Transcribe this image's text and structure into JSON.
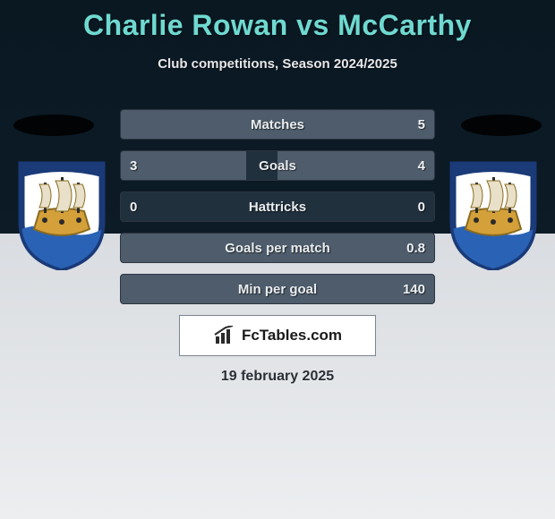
{
  "title": "Charlie Rowan vs McCarthy",
  "subtitle": "Club competitions, Season 2024/2025",
  "date": "19 february 2025",
  "brand": "FcTables.com",
  "colors": {
    "title": "#6fd9d0",
    "bar_fill": "#4e5c6b",
    "bar_track": "#20303d",
    "bar_border": "#2d3540",
    "text_light": "#e9edef"
  },
  "crest": {
    "shield_border": "#1a3a78",
    "shield_fill": "#ffffff",
    "ship_hull": "#d4a03a",
    "mast": "#2a2a2a",
    "sail": "#e8e0c8",
    "wave": "#2a62b5",
    "banner": "#1a3a78"
  },
  "stats": [
    {
      "label": "Matches",
      "left_val": "",
      "right_val": "5",
      "left_pct": 0,
      "right_pct": 100
    },
    {
      "label": "Goals",
      "left_val": "3",
      "right_val": "4",
      "left_pct": 40,
      "right_pct": 50
    },
    {
      "label": "Hattricks",
      "left_val": "0",
      "right_val": "0",
      "left_pct": 0,
      "right_pct": 0
    },
    {
      "label": "Goals per match",
      "left_val": "",
      "right_val": "0.8",
      "left_pct": 0,
      "right_pct": 100
    },
    {
      "label": "Min per goal",
      "left_val": "",
      "right_val": "140",
      "left_pct": 0,
      "right_pct": 100
    }
  ]
}
